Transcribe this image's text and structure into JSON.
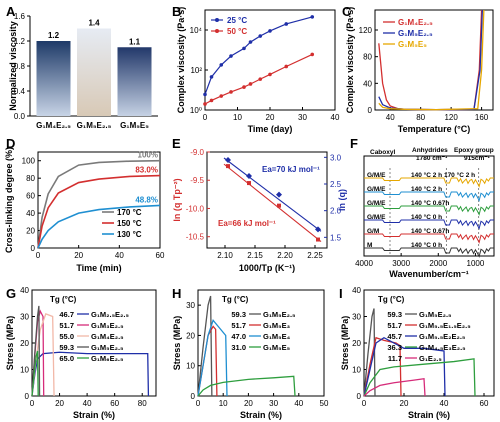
{
  "panels": [
    {
      "letter": "A",
      "ylabel": "Normalized viscosity"
    },
    {
      "letter": "B",
      "ylabel": "Complex viscosity (Pa·s)",
      "xlabel": "Time (day)"
    },
    {
      "letter": "C",
      "ylabel": "Complex viscosity (Pa·s)",
      "xlabel": "Temperature (°C)"
    },
    {
      "letter": "D",
      "ylabel": "Cross-linking degree (%)",
      "xlabel": "Time (min)"
    },
    {
      "letter": "E",
      "ylabel_left": "ln (q Tp⁻²)",
      "ylabel_right": "ln (q)",
      "xlabel": "1000/Tp (K⁻¹)"
    },
    {
      "letter": "F",
      "xlabel": "Wavenumber/cm⁻¹"
    },
    {
      "letter": "G",
      "ylabel": "Stress (MPa)",
      "xlabel": "Strain (%)"
    },
    {
      "letter": "H",
      "ylabel": "Stress (MPa)",
      "xlabel": "Strain (%)"
    },
    {
      "letter": "I",
      "ylabel": "Stress (MPa)",
      "xlabel": "Strain (%)"
    }
  ],
  "chart_data": [
    {
      "panel": "A",
      "type": "bar",
      "categories": [
        "G₁M₄E₂.₅",
        "G₁M₅E₂.₅",
        "G₁M₅E₅"
      ],
      "values": [
        1.2,
        1.4,
        1.1
      ],
      "data_labels": [
        "1.2",
        "1.4",
        "1.1"
      ],
      "ylabel": "Normalized viscosity",
      "ylim": [
        0,
        1.6
      ]
    },
    {
      "panel": "B",
      "type": "line",
      "ylabel": "Complex viscosity (Pa·s)",
      "xlabel": "Time (day)",
      "xlim": [
        0,
        40
      ],
      "ylim": [
        1,
        100000
      ],
      "y_scale": "log",
      "x_ticks": [
        "0",
        "10",
        "20",
        "30",
        "40"
      ],
      "y_ticks": [
        "10⁰",
        "10²",
        "10⁴"
      ],
      "legend_position": "top-left",
      "series": [
        {
          "name": "25 °C",
          "color": "#1f2fa8",
          "x": [
            0,
            2,
            5,
            8,
            12,
            14,
            17,
            20,
            25,
            33
          ],
          "y": [
            6,
            45,
            180,
            500,
            1200,
            2500,
            5000,
            9000,
            20000,
            45000
          ]
        },
        {
          "name": "50 °C",
          "color": "#d32f2f",
          "x": [
            0,
            2,
            5,
            8,
            12,
            14,
            17,
            20,
            25,
            33
          ],
          "y": [
            2,
            3,
            5,
            8,
            14,
            20,
            35,
            60,
            150,
            600
          ]
        }
      ]
    },
    {
      "panel": "C",
      "type": "line",
      "ylabel": "Complex viscosity (Pa·s)",
      "xlabel": "Temperature (°C)",
      "xlim": [
        20,
        175
      ],
      "ylim": [
        0,
        150
      ],
      "x_ticks": [
        "40",
        "80",
        "120",
        "160"
      ],
      "y_ticks": [
        "0",
        "40",
        "80",
        "120"
      ],
      "legend_position": "top-left",
      "series": [
        {
          "name": "G₁M₄E₂.₅",
          "color": "#d32f2f",
          "x": [
            25,
            30,
            35,
            40,
            50,
            60,
            100,
            150,
            157,
            160
          ],
          "y": [
            100,
            40,
            15,
            6,
            2,
            1,
            0.5,
            1,
            60,
            150
          ]
        },
        {
          "name": "G₁M₅E₂.₅",
          "color": "#1f2fa8",
          "x": [
            25,
            30,
            40,
            60,
            100,
            150,
            158,
            161
          ],
          "y": [
            20,
            8,
            3,
            1,
            0.5,
            1,
            60,
            150
          ]
        },
        {
          "name": "G₁M₅E₅",
          "color": "#e6a700",
          "x": [
            25,
            30,
            40,
            60,
            100,
            155,
            160,
            163
          ],
          "y": [
            10,
            4,
            2,
            1,
            0.5,
            2,
            60,
            150
          ]
        }
      ]
    },
    {
      "panel": "D",
      "type": "line",
      "ylabel": "Cross-linking degree (%)",
      "xlabel": "Time (min)",
      "xlim": [
        0,
        60
      ],
      "ylim": [
        0,
        110
      ],
      "x_ticks": [
        "0",
        "20",
        "40",
        "60"
      ],
      "y_ticks": [
        "0",
        "20",
        "40",
        "60",
        "80",
        "100"
      ],
      "legend_position": "bottom-right",
      "series": [
        {
          "name": "170 °C",
          "color": "#7a7a7a",
          "end_label": "100%",
          "x": [
            0,
            2,
            5,
            10,
            20,
            30,
            45,
            60
          ],
          "y": [
            0,
            35,
            62,
            82,
            95,
            98,
            99.5,
            100
          ]
        },
        {
          "name": "150 °C",
          "color": "#d32f2f",
          "end_label": "83.0%",
          "x": [
            0,
            2,
            5,
            10,
            20,
            30,
            45,
            60
          ],
          "y": [
            0,
            25,
            46,
            63,
            75,
            79,
            82,
            83
          ]
        },
        {
          "name": "130 °C",
          "color": "#1f8fd1",
          "end_label": "48.8%",
          "x": [
            0,
            2,
            5,
            10,
            20,
            30,
            45,
            60
          ],
          "y": [
            0,
            10,
            20,
            30,
            40,
            44,
            47,
            48.8
          ]
        }
      ]
    },
    {
      "panel": "E",
      "type": "scatter",
      "xlabel": "1000/Tp (K⁻¹)",
      "ylabel_left": "ln (q Tp⁻²)",
      "ylabel_right": "ln (q)",
      "xlim": [
        2.07,
        2.27
      ],
      "ylim_left": [
        -10.7,
        -9.0
      ],
      "ylim_right": [
        1.3,
        3.1
      ],
      "x_ticks": [
        "2.10",
        "2.15",
        "2.20",
        "2.25"
      ],
      "y_ticks_left": [
        "-9.0",
        "-9.5",
        "-10.0",
        "-10.5"
      ],
      "y_ticks_right": [
        "1.5",
        "2.0",
        "2.5",
        "3.0"
      ],
      "annotations": [
        "Ea=70 kJ mol⁻¹",
        "Ea=66 kJ mol⁻¹"
      ],
      "series": [
        {
          "axis": "left",
          "color": "#d32f2f",
          "x": [
            2.105,
            2.14,
            2.19,
            2.255
          ],
          "y": [
            -9.25,
            -9.55,
            -9.95,
            -10.55
          ]
        },
        {
          "axis": "right",
          "color": "#1f2fa8",
          "x": [
            2.105,
            2.14,
            2.19,
            2.255
          ],
          "y": [
            2.95,
            2.65,
            2.3,
            1.65
          ]
        }
      ]
    },
    {
      "panel": "F",
      "type": "line",
      "xlabel": "Wavenumber/cm⁻¹",
      "xlim": [
        4000,
        500
      ],
      "x_ticks": [
        "4000",
        "3000",
        "2000",
        "1000"
      ],
      "band_labels": [
        "Caboxyl",
        "Anhydrides",
        "1780 cm⁻¹",
        "Epoxy group",
        "915cm⁻¹"
      ],
      "series": [
        {
          "name": "G/M/E",
          "condition": "140 °C 2 h 170 °C 2 h",
          "color": "#e6a700"
        },
        {
          "name": "G/M/E",
          "condition": "140 °C 2 h",
          "color": "#1f8fd1"
        },
        {
          "name": "G/M/E",
          "condition": "140 °C 0.67h",
          "color": "#2e9e3e"
        },
        {
          "name": "G/M/E",
          "condition": "140 °C 0 h",
          "color": "#1f2fa8"
        },
        {
          "name": "G/M",
          "condition": "140 °C 0.67h",
          "color": "#d32f2f"
        },
        {
          "name": "M",
          "condition": "140 °C 0 h",
          "color": "#333333"
        }
      ]
    },
    {
      "panel": "G",
      "type": "line",
      "ylabel": "Stress (MPa)",
      "xlabel": "Strain (%)",
      "xlim": [
        0,
        90
      ],
      "ylim": [
        0,
        40
      ],
      "x_ticks": [
        "0",
        "20",
        "40",
        "60",
        "80"
      ],
      "y_ticks": [
        "0",
        "10",
        "20",
        "30",
        "40"
      ],
      "legend_title": "Tg (°C)",
      "series": [
        {
          "name": "G₁M₂.₅E₂.₅",
          "tg": "46.7",
          "color": "#1f2fa8",
          "x": [
            0,
            2,
            4,
            8,
            20,
            40,
            60,
            80,
            84,
            84.5
          ],
          "y": [
            0,
            8,
            14,
            16,
            16.5,
            16,
            16,
            16,
            16,
            0
          ]
        },
        {
          "name": "G₁M₃E₂.₅",
          "tg": "51.7",
          "color": "#d62c7a",
          "x": [
            0,
            2,
            4,
            6,
            8,
            8.5
          ],
          "y": [
            0,
            15,
            28,
            32,
            30,
            0
          ]
        },
        {
          "name": "G₁M₄E₂.₅",
          "tg": "55.0",
          "color": "#f2b8a8",
          "x": [
            0,
            3,
            6,
            10,
            15,
            16
          ],
          "y": [
            0,
            14,
            25,
            31,
            30,
            0
          ]
        },
        {
          "name": "G₁M₅E₂.₅",
          "tg": "59.3",
          "color": "#555555",
          "x": [
            0,
            2,
            4,
            5,
            5.5
          ],
          "y": [
            0,
            16,
            30,
            34,
            0
          ]
        },
        {
          "name": "G₁M₆E₂.₅",
          "tg": "65.0",
          "color": "#2e9e3e",
          "x": [
            0,
            1.5,
            3,
            4,
            4.5
          ],
          "y": [
            0,
            8,
            15,
            17,
            0
          ]
        }
      ]
    },
    {
      "panel": "H",
      "type": "line",
      "ylabel": "Stress (MPa)",
      "xlabel": "Strain (%)",
      "xlim": [
        0,
        50
      ],
      "ylim": [
        0,
        35
      ],
      "x_ticks": [
        "0",
        "10",
        "20",
        "30",
        "40",
        "50"
      ],
      "y_ticks": [
        "0",
        "10",
        "20",
        "30"
      ],
      "legend_title": "Tg (°C)",
      "series": [
        {
          "name": "G₁M₅E₂.₅",
          "tg": "59.3",
          "color": "#555555",
          "x": [
            0,
            2,
            4,
            5,
            5.5
          ],
          "y": [
            0,
            16,
            30,
            33,
            0
          ]
        },
        {
          "name": "G₁M₅E₃",
          "tg": "51.7",
          "color": "#d32f2f",
          "x": [
            0,
            2,
            4,
            6,
            7,
            7.5
          ],
          "y": [
            0,
            10,
            20,
            23,
            22,
            0
          ]
        },
        {
          "name": "G₁M₅E₄",
          "tg": "47.0",
          "color": "#1f8fd1",
          "x": [
            0,
            2,
            4,
            6,
            9,
            11,
            11.5
          ],
          "y": [
            0,
            10,
            20,
            25,
            22,
            20,
            0
          ]
        },
        {
          "name": "G₁M₅E₅",
          "tg": "31.0",
          "color": "#2e9e3e",
          "x": [
            0,
            2,
            5,
            10,
            20,
            30,
            38,
            38.5
          ],
          "y": [
            0,
            2,
            3.5,
            4.5,
            5.5,
            6.0,
            6.5,
            0
          ]
        }
      ]
    },
    {
      "panel": "I",
      "type": "line",
      "ylabel": "Stress (MPa)",
      "xlabel": "Strain (%)",
      "xlim": [
        0,
        65
      ],
      "ylim": [
        0,
        40
      ],
      "x_ticks": [
        "0",
        "20",
        "40",
        "60"
      ],
      "y_ticks": [
        "0",
        "10",
        "20",
        "30",
        "40"
      ],
      "legend_title": "Tg (°C)",
      "series": [
        {
          "name": "G₁M₅E₂.₅",
          "tg": "59.3",
          "color": "#555555",
          "x": [
            0,
            2,
            4,
            5,
            5.5
          ],
          "y": [
            0,
            16,
            30,
            33,
            0
          ]
        },
        {
          "name": "G₁M₅.₅E₁.₅E₂.₅",
          "tg": "51.7",
          "color": "#d32f2f",
          "x": [
            0,
            3,
            6,
            10,
            16,
            18,
            18.5
          ],
          "y": [
            0,
            12,
            22,
            21,
            20,
            19,
            0
          ]
        },
        {
          "name": "G₁M₅.₅E₂E₂.₅",
          "tg": "45.7",
          "color": "#1f2fa8",
          "x": [
            0,
            3,
            6,
            10,
            20,
            30,
            40,
            40.5
          ],
          "y": [
            0,
            10,
            20,
            22,
            18,
            18,
            17,
            0
          ]
        },
        {
          "name": "G₁M₄.₅E₃E₂.₅",
          "tg": "36.3",
          "color": "#2e9e3e",
          "x": [
            0,
            3,
            8,
            15,
            30,
            45,
            55,
            55.5
          ],
          "y": [
            0,
            5,
            10,
            11,
            12,
            13,
            14,
            0
          ]
        },
        {
          "name": "G₁E₂.₅",
          "tg": "11.7",
          "color": "#d62c7a",
          "x": [
            0,
            3,
            8,
            15,
            25,
            30,
            30.5
          ],
          "y": [
            0,
            2,
            4,
            5,
            6,
            6.5,
            0
          ]
        }
      ]
    }
  ]
}
